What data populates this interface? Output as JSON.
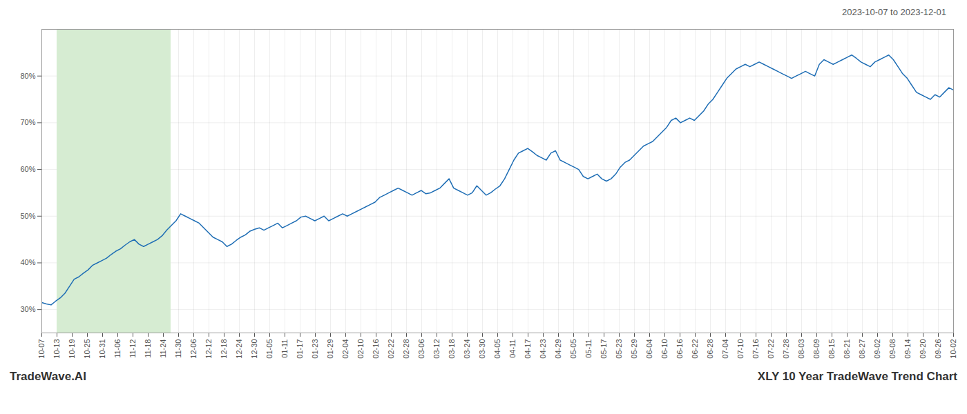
{
  "chart_data": {
    "type": "line",
    "title": "XLY 10 Year TradeWave Trend Chart",
    "subtitle": "2023-10-07 to 2023-12-01",
    "annotations": [
      "TradeWave.AI"
    ],
    "color": "#1f6eb5",
    "x": [
      0,
      1,
      2,
      3,
      4,
      5,
      6,
      7,
      8,
      9,
      10,
      11,
      12,
      13,
      14,
      15,
      16,
      17,
      18,
      19,
      20,
      21,
      22,
      23,
      24,
      25,
      26,
      27,
      28,
      29,
      30,
      31,
      32,
      33,
      34,
      35,
      36,
      37,
      38,
      39,
      40,
      41,
      42,
      43,
      44,
      45,
      46,
      47,
      48,
      49,
      50,
      51,
      52,
      53,
      54,
      55,
      56,
      57,
      58,
      59,
      60,
      61,
      62,
      63,
      64,
      65,
      66,
      67,
      68,
      69,
      70,
      71,
      72,
      73,
      74,
      75,
      76,
      77,
      78,
      79,
      80,
      81,
      82,
      83,
      84,
      85,
      86,
      87,
      88,
      89,
      90,
      91,
      92,
      93,
      94,
      95,
      96,
      97,
      98,
      99,
      100,
      101,
      102,
      103,
      104,
      105,
      106,
      107,
      108,
      109,
      110,
      111,
      112,
      113,
      114,
      115,
      116,
      117,
      118,
      119,
      120,
      121,
      122,
      123,
      124,
      125,
      126,
      127,
      128,
      129,
      130,
      131,
      132,
      133,
      134,
      135,
      136,
      137,
      138,
      139,
      140,
      141,
      142,
      143,
      144,
      145,
      146,
      147,
      148,
      149,
      150,
      151,
      152,
      153,
      154,
      155,
      156,
      157,
      158,
      159,
      160,
      161,
      162,
      163,
      164,
      165,
      166,
      167,
      168,
      169,
      170,
      171,
      172,
      173,
      174,
      175,
      176,
      177,
      178,
      179,
      180,
      181,
      182,
      183,
      184,
      185,
      186,
      187,
      188,
      189,
      190,
      191,
      192,
      193,
      194,
      195,
      196,
      197
    ],
    "values": [
      31.5,
      31.2,
      31.0,
      31.8,
      32.5,
      33.5,
      35.0,
      36.5,
      37.0,
      37.8,
      38.5,
      39.5,
      40.0,
      40.5,
      41.0,
      41.8,
      42.5,
      43.0,
      43.8,
      44.5,
      45.0,
      44.0,
      43.5,
      44.0,
      44.5,
      45.0,
      45.8,
      47.0,
      48.0,
      49.0,
      50.5,
      50.0,
      49.5,
      49.0,
      48.5,
      47.5,
      46.5,
      45.5,
      45.0,
      44.5,
      43.5,
      44.0,
      44.8,
      45.5,
      46.0,
      46.8,
      47.2,
      47.5,
      47.0,
      47.5,
      48.0,
      48.5,
      47.5,
      48.0,
      48.5,
      49.0,
      49.8,
      50.0,
      49.5,
      49.0,
      49.5,
      50.0,
      49.0,
      49.5,
      50.0,
      50.5,
      50.0,
      50.5,
      51.0,
      51.5,
      52.0,
      52.5,
      53.0,
      54.0,
      54.5,
      55.0,
      55.5,
      56.0,
      55.5,
      55.0,
      54.5,
      55.0,
      55.5,
      54.8,
      55.0,
      55.5,
      56.0,
      57.0,
      58.0,
      56.0,
      55.5,
      55.0,
      54.5,
      55.0,
      56.5,
      55.5,
      54.5,
      55.0,
      55.8,
      56.5,
      58.0,
      60.0,
      62.0,
      63.5,
      64.0,
      64.5,
      63.8,
      63.0,
      62.5,
      62.0,
      63.5,
      64.0,
      62.0,
      61.5,
      61.0,
      60.5,
      60.0,
      58.5,
      58.0,
      58.5,
      59.0,
      58.0,
      57.5,
      58.0,
      59.0,
      60.5,
      61.5,
      62.0,
      63.0,
      64.0,
      65.0,
      65.5,
      66.0,
      67.0,
      68.0,
      69.0,
      70.5,
      71.0,
      70.0,
      70.5,
      71.0,
      70.5,
      71.5,
      72.5,
      74.0,
      75.0,
      76.5,
      78.0,
      79.5,
      80.5,
      81.5,
      82.0,
      82.5,
      82.0,
      82.5,
      83.0,
      82.5,
      82.0,
      81.5,
      81.0,
      80.5,
      80.0,
      79.5,
      80.0,
      80.5,
      81.0,
      80.5,
      80.0,
      82.5,
      83.5,
      83.0,
      82.5,
      83.0,
      83.5,
      84.0,
      84.5,
      83.8,
      83.0,
      82.5,
      82.0,
      83.0,
      83.5,
      84.0,
      84.5,
      83.5,
      82.0,
      80.5,
      79.5,
      78.0,
      76.5,
      76.0,
      75.5,
      75.0,
      76.0,
      75.5,
      76.5,
      77.5,
      77.0
    ],
    "xlim": [
      0,
      197
    ],
    "ylim": [
      25,
      90
    ],
    "xticks": [
      {
        "value": 0,
        "label": "10-07"
      },
      {
        "value": 3.283333,
        "label": "10-13"
      },
      {
        "value": 6.566667,
        "label": "10-19"
      },
      {
        "value": 9.85,
        "label": "10-25"
      },
      {
        "value": 13.133333,
        "label": "10-31"
      },
      {
        "value": 16.416667,
        "label": "11-06"
      },
      {
        "value": 19.7,
        "label": "11-12"
      },
      {
        "value": 22.983333,
        "label": "11-18"
      },
      {
        "value": 26.266667,
        "label": "11-24"
      },
      {
        "value": 29.55,
        "label": "11-30"
      },
      {
        "value": 32.833333,
        "label": "12-06"
      },
      {
        "value": 36.116667,
        "label": "12-12"
      },
      {
        "value": 39.4,
        "label": "12-18"
      },
      {
        "value": 42.683333,
        "label": "12-24"
      },
      {
        "value": 45.966667,
        "label": "12-30"
      },
      {
        "value": 49.25,
        "label": "01-05"
      },
      {
        "value": 52.533333,
        "label": "01-11"
      },
      {
        "value": 55.816667,
        "label": "01-17"
      },
      {
        "value": 59.1,
        "label": "01-23"
      },
      {
        "value": 62.383333,
        "label": "01-29"
      },
      {
        "value": 65.666667,
        "label": "02-04"
      },
      {
        "value": 68.95,
        "label": "02-10"
      },
      {
        "value": 72.233333,
        "label": "02-16"
      },
      {
        "value": 75.516667,
        "label": "02-22"
      },
      {
        "value": 78.8,
        "label": "02-28"
      },
      {
        "value": 82.083333,
        "label": "03-06"
      },
      {
        "value": 85.366667,
        "label": "03-12"
      },
      {
        "value": 88.65,
        "label": "03-18"
      },
      {
        "value": 91.933333,
        "label": "03-24"
      },
      {
        "value": 95.216667,
        "label": "03-30"
      },
      {
        "value": 98.5,
        "label": "04-05"
      },
      {
        "value": 101.783333,
        "label": "04-11"
      },
      {
        "value": 105.066667,
        "label": "04-17"
      },
      {
        "value": 108.35,
        "label": "04-23"
      },
      {
        "value": 111.633333,
        "label": "04-29"
      },
      {
        "value": 114.916667,
        "label": "05-05"
      },
      {
        "value": 118.2,
        "label": "05-11"
      },
      {
        "value": 121.483333,
        "label": "05-17"
      },
      {
        "value": 124.766667,
        "label": "05-23"
      },
      {
        "value": 128.05,
        "label": "05-29"
      },
      {
        "value": 131.333333,
        "label": "06-04"
      },
      {
        "value": 134.616667,
        "label": "06-10"
      },
      {
        "value": 137.9,
        "label": "06-16"
      },
      {
        "value": 141.183333,
        "label": "06-22"
      },
      {
        "value": 144.466667,
        "label": "06-28"
      },
      {
        "value": 147.75,
        "label": "07-04"
      },
      {
        "value": 151.033333,
        "label": "07-10"
      },
      {
        "value": 154.316667,
        "label": "07-16"
      },
      {
        "value": 157.6,
        "label": "07-22"
      },
      {
        "value": 160.883333,
        "label": "07-28"
      },
      {
        "value": 164.166667,
        "label": "08-03"
      },
      {
        "value": 167.45,
        "label": "08-09"
      },
      {
        "value": 170.733333,
        "label": "08-15"
      },
      {
        "value": 174.016667,
        "label": "08-21"
      },
      {
        "value": 177.3,
        "label": "08-27"
      },
      {
        "value": 180.583333,
        "label": "09-02"
      },
      {
        "value": 183.866667,
        "label": "09-08"
      },
      {
        "value": 187.15,
        "label": "09-14"
      },
      {
        "value": 190.433333,
        "label": "09-20"
      },
      {
        "value": 193.716667,
        "label": "09-26"
      },
      {
        "value": 197,
        "label": "10-02"
      }
    ],
    "yticks": [
      {
        "value": 30,
        "label": "30%"
      },
      {
        "value": 40,
        "label": "40%"
      },
      {
        "value": 50,
        "label": "50%"
      },
      {
        "value": 60,
        "label": "60%"
      },
      {
        "value": 70,
        "label": "70%"
      },
      {
        "value": 80,
        "label": "80%"
      }
    ],
    "grid": true,
    "highlight": {
      "x": [
        3.283333,
        27.908333
      ],
      "color": "#d6ecd2"
    }
  }
}
